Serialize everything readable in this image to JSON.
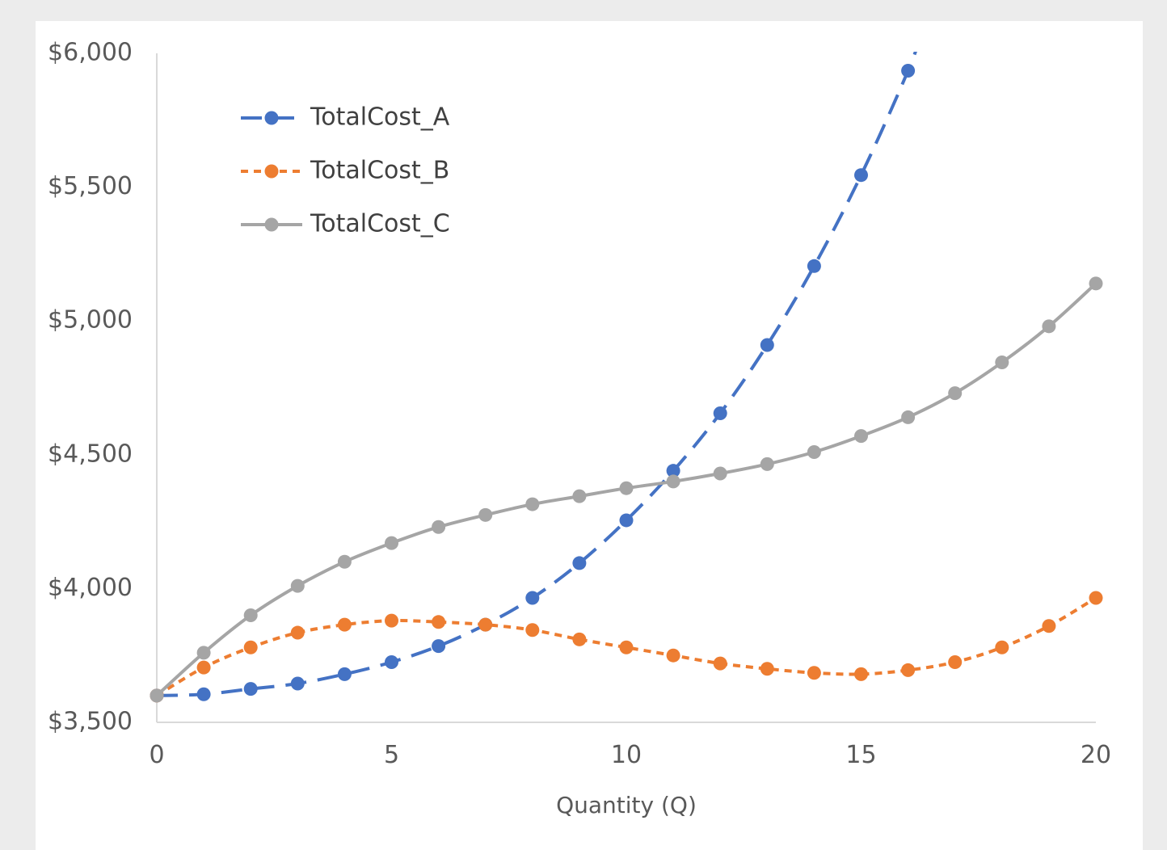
{
  "chart_data": {
    "type": "line",
    "title": "",
    "xlabel": "Quantity (Q)",
    "ylabel": "",
    "xlim": [
      0,
      20
    ],
    "ylim": [
      3500,
      6000
    ],
    "x_ticks": [
      "0",
      "5",
      "10",
      "15",
      "20"
    ],
    "x_tick_values": [
      0,
      5,
      10,
      15,
      20
    ],
    "y_ticks": [
      "$3,500",
      "$4,000",
      "$4,500",
      "$5,000",
      "$5,500",
      "$6,000"
    ],
    "y_tick_values": [
      3500,
      4000,
      4500,
      5000,
      5500,
      6000
    ],
    "grid": false,
    "legend_position": "top-left",
    "series": [
      {
        "name": "TotalCost_A",
        "color": "#4472C4",
        "dash": "long-dash",
        "x": [
          0,
          1,
          2,
          3,
          4,
          5,
          6,
          7,
          8,
          9,
          10,
          11,
          12,
          13,
          14,
          15,
          16
        ],
        "y": [
          3600,
          3605,
          3625,
          3645,
          3680,
          3725,
          3785,
          3865,
          3965,
          4095,
          4255,
          4440,
          4655,
          4910,
          5205,
          5545,
          5935
        ]
      },
      {
        "name": "TotalCost_B",
        "color": "#ED7D31",
        "dash": "short-dash",
        "x": [
          0,
          1,
          2,
          3,
          4,
          5,
          6,
          7,
          8,
          9,
          10,
          11,
          12,
          13,
          14,
          15,
          16,
          17,
          18,
          19,
          20
        ],
        "y": [
          3600,
          3705,
          3780,
          3835,
          3865,
          3880,
          3875,
          3865,
          3845,
          3810,
          3780,
          3750,
          3720,
          3700,
          3685,
          3680,
          3695,
          3725,
          3780,
          3860,
          3965
        ]
      },
      {
        "name": "TotalCost_C",
        "color": "#A5A5A5",
        "dash": "solid",
        "x": [
          0,
          1,
          2,
          3,
          4,
          5,
          6,
          7,
          8,
          9,
          10,
          11,
          12,
          13,
          14,
          15,
          16,
          17,
          18,
          19,
          20
        ],
        "y": [
          3600,
          3760,
          3900,
          4010,
          4100,
          4170,
          4230,
          4275,
          4315,
          4345,
          4375,
          4400,
          4430,
          4465,
          4510,
          4570,
          4640,
          4730,
          4845,
          4980,
          5140
        ]
      }
    ]
  }
}
